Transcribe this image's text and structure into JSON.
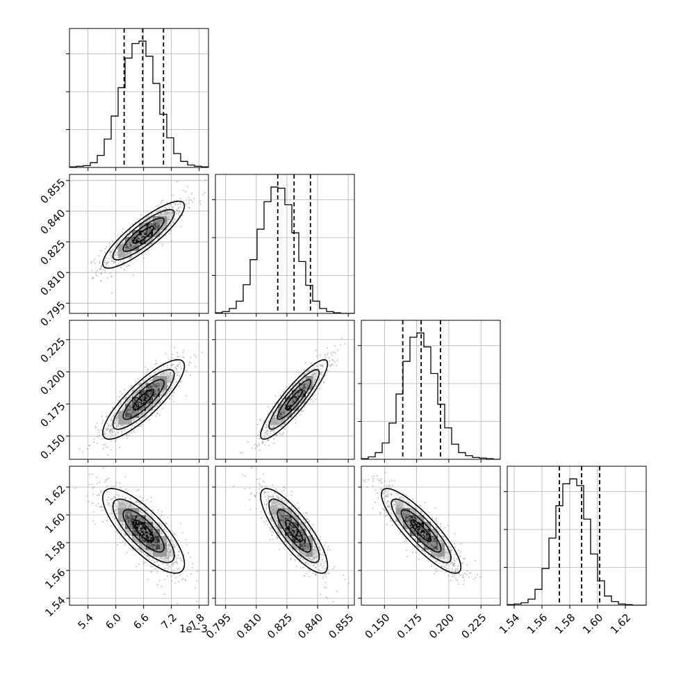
{
  "chart_data": {
    "type": "corner",
    "parameters": 4,
    "grid": true,
    "colors": {
      "line": "#000000",
      "grid": "#b0b0b0",
      "scatter": "#9e9e9e",
      "background": "#ffffff"
    },
    "axes": [
      {
        "range": [
          0.005,
          0.008
        ],
        "ticks": [
          0.0054,
          0.006,
          0.0066,
          0.0072,
          0.0078
        ],
        "tick_labels": [
          "5.4",
          "6.0",
          "6.6",
          "7.2",
          "7.8"
        ],
        "offset_label": "1e−3",
        "quantiles": [
          0.00618,
          0.00658,
          0.00703
        ]
      },
      {
        "range": [
          0.79,
          0.858
        ],
        "ticks": [
          0.795,
          0.81,
          0.825,
          0.84,
          0.855
        ],
        "tick_labels": [
          "0.795",
          "0.810",
          "0.825",
          "0.840",
          "0.855"
        ],
        "quantiles": [
          0.8205,
          0.8285,
          0.8365
        ]
      },
      {
        "range": [
          0.132,
          0.24
        ],
        "ticks": [
          0.15,
          0.175,
          0.2,
          0.225
        ],
        "tick_labels": [
          "0.150",
          "0.175",
          "0.200",
          "0.225"
        ],
        "quantiles": [
          0.1642,
          0.1785,
          0.1935
        ]
      },
      {
        "range": [
          1.535,
          1.635
        ],
        "ticks": [
          1.54,
          1.56,
          1.58,
          1.6,
          1.62
        ],
        "tick_labels": [
          "1.54",
          "1.56",
          "1.58",
          "1.60",
          "1.62"
        ],
        "quantiles": [
          1.5725,
          1.5885,
          1.6015
        ]
      }
    ],
    "histograms": [
      {
        "edges_start": 0.005,
        "edges_end": 0.008,
        "counts": [
          1,
          2,
          3,
          8,
          20,
          47,
          85,
          132,
          181,
          205,
          209,
          184,
          139,
          88,
          49,
          23,
          10,
          4,
          2,
          1
        ]
      },
      {
        "edges_start": 0.79,
        "edges_end": 0.858,
        "counts": [
          1,
          3,
          8,
          20,
          47,
          88,
          138,
          183,
          207,
          205,
          178,
          132,
          85,
          46,
          20,
          8,
          3,
          1,
          0,
          0
        ]
      },
      {
        "edges_start": 0.132,
        "edges_end": 0.24,
        "counts": [
          1,
          4,
          11,
          27,
          60,
          108,
          162,
          202,
          209,
          186,
          142,
          91,
          52,
          25,
          11,
          6,
          3,
          2,
          1,
          0
        ]
      },
      {
        "edges_start": 1.535,
        "edges_end": 1.635,
        "counts": [
          1,
          2,
          4,
          10,
          26,
          60,
          110,
          163,
          199,
          207,
          196,
          141,
          84,
          40,
          15,
          6,
          2,
          1,
          0,
          0
        ]
      }
    ],
    "correlations": [
      [
        1.0,
        0.86,
        0.84,
        -0.78
      ],
      [
        0.86,
        1.0,
        0.9,
        -0.82
      ],
      [
        0.84,
        0.9,
        1.0,
        -0.86
      ],
      [
        -0.78,
        -0.82,
        -0.86,
        1.0
      ]
    ],
    "centers": [
      0.0066,
      0.8285,
      0.1785,
      1.5885
    ],
    "sigmas": [
      0.00042,
      0.0078,
      0.0147,
      0.0145
    ]
  }
}
